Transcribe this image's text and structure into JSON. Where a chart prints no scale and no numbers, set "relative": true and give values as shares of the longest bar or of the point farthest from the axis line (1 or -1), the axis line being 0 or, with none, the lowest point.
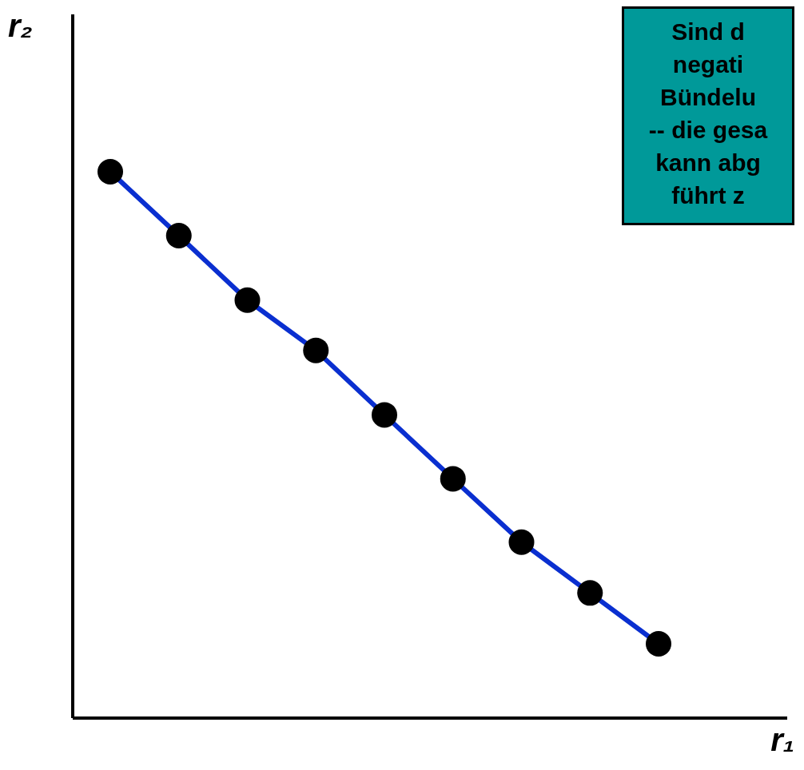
{
  "chart_data": {
    "type": "line",
    "relative": true,
    "marker": "circle",
    "xlabel": "r₁",
    "ylabel": "r₂",
    "annotations": [
      "Sind d\nnegati\nBündelu\n-- die gesa\nkann abg\nführt z"
    ],
    "categories": [
      null,
      null,
      null,
      null,
      null,
      null,
      null,
      null,
      null
    ],
    "series": [
      {
        "color": "#0a2fd0",
        "values": [
          1,
          0.883,
          0.765,
          0.673,
          0.555,
          0.438,
          0.322,
          0.229,
          0.136
        ]
      }
    ]
  }
}
